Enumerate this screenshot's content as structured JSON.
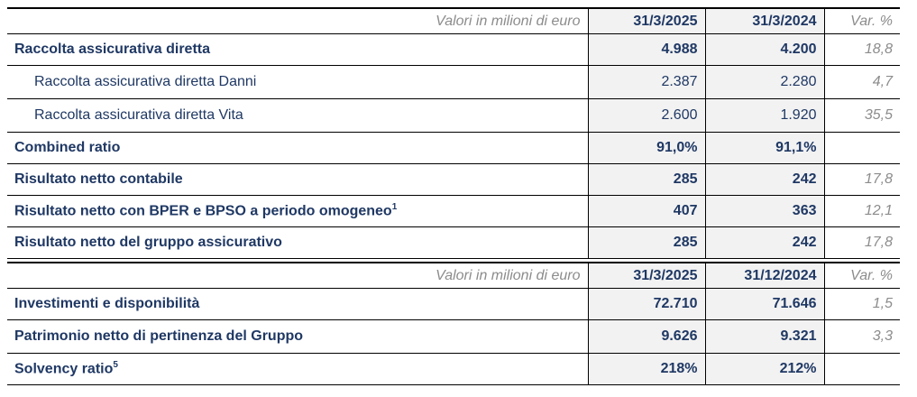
{
  "section1": {
    "header": {
      "label": "Valori in milioni di euro",
      "col1": "31/3/2025",
      "col2": "31/3/2024",
      "col3": "Var. %"
    },
    "rows": [
      {
        "name": "Raccolta assicurativa diretta",
        "v1": "4.988",
        "v2": "4.200",
        "var": "18,8",
        "sup": ""
      },
      {
        "name": "Raccolta assicurativa diretta Danni",
        "v1": "2.387",
        "v2": "2.280",
        "var": "4,7",
        "sup": ""
      },
      {
        "name": "Raccolta assicurativa diretta Vita",
        "v1": "2.600",
        "v2": "1.920",
        "var": "35,5",
        "sup": ""
      },
      {
        "name": "Combined ratio",
        "v1": "91,0%",
        "v2": "91,1%",
        "var": "",
        "sup": ""
      },
      {
        "name": "Risultato netto contabile",
        "v1": "285",
        "v2": "242",
        "var": "17,8",
        "sup": ""
      },
      {
        "name": "Risultato netto con BPER e BPSO a periodo omogeneo",
        "v1": "407",
        "v2": "363",
        "var": "12,1",
        "sup": "1"
      },
      {
        "name": "Risultato netto del gruppo assicurativo",
        "v1": "285",
        "v2": "242",
        "var": "17,8",
        "sup": ""
      }
    ]
  },
  "section2": {
    "header": {
      "label": "Valori in milioni di euro",
      "col1": "31/3/2025",
      "col2": "31/12/2024",
      "col3": "Var. %"
    },
    "rows": [
      {
        "name": "Investimenti e disponibilità",
        "v1": "72.710",
        "v2": "71.646",
        "var": "1,5",
        "sup": ""
      },
      {
        "name": "Patrimonio netto di pertinenza del Gruppo",
        "v1": "9.626",
        "v2": "9.321",
        "var": "3,3",
        "sup": ""
      },
      {
        "name": "Solvency ratio",
        "v1": "218%",
        "v2": "212%",
        "var": "",
        "sup": "5"
      }
    ]
  }
}
